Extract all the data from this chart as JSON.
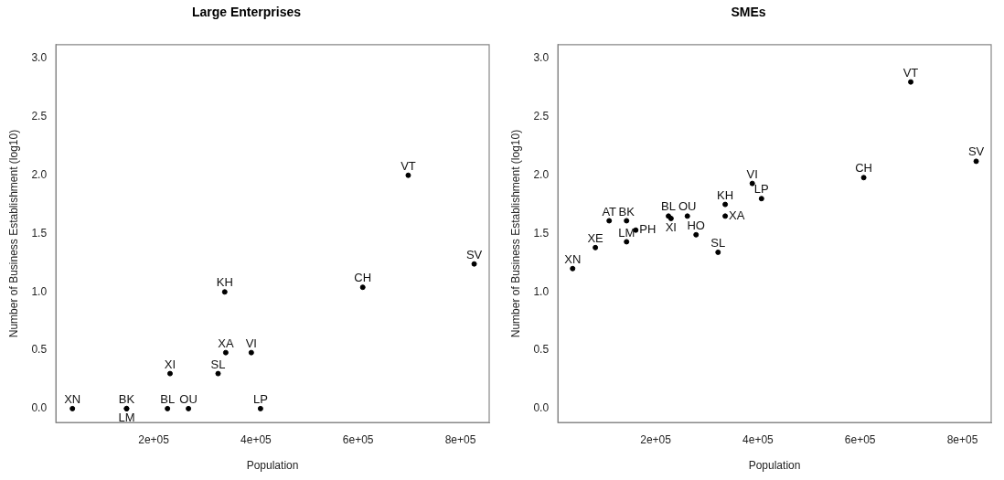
{
  "chart_data": [
    {
      "type": "scatter",
      "title": "Large Enterprises",
      "xlabel": "Population",
      "ylabel": "Number of Business Establishment (log10)",
      "marker": "circle",
      "grid": false,
      "legend": false,
      "x": [
        41000,
        147000,
        147000,
        227000,
        268000,
        232000,
        326000,
        341000,
        391000,
        409000,
        339000,
        609000,
        698000,
        827000
      ],
      "series": [
        {
          "color": "#000000",
          "values": [
            0,
            0,
            0,
            0,
            0,
            0.3,
            0.3,
            0.48,
            0.48,
            0,
            1.0,
            1.04,
            2.0,
            1.24
          ]
        }
      ],
      "xlim": [
        8600,
        856400
      ],
      "xticks": [
        {
          "value": 200000,
          "label": "2e+05"
        },
        {
          "value": 400000,
          "label": "4e+05"
        },
        {
          "value": 600000,
          "label": "6e+05"
        },
        {
          "value": 800000,
          "label": "8e+05"
        }
      ],
      "ylim": [
        -0.12,
        3.12
      ],
      "yticks": [
        {
          "value": 0,
          "label": "0.0"
        },
        {
          "value": 0.5,
          "label": "0.5"
        },
        {
          "value": 1,
          "label": "1.0"
        },
        {
          "value": 1.5,
          "label": "1.5"
        },
        {
          "value": 2,
          "label": "2.0"
        },
        {
          "value": 2.5,
          "label": "2.5"
        },
        {
          "value": 3,
          "label": "3.0"
        }
      ],
      "annotations": [
        {
          "text": "XN",
          "x": 41000,
          "y": 0
        },
        {
          "text": "BK",
          "x": 147000,
          "y": 0
        },
        {
          "text": "LM",
          "x": 147000,
          "y": 0
        },
        {
          "text": "BL",
          "x": 227000,
          "y": 0
        },
        {
          "text": "OU",
          "x": 268000,
          "y": 0
        },
        {
          "text": "XI",
          "x": 232000,
          "y": 0.3
        },
        {
          "text": "SL",
          "x": 326000,
          "y": 0.3
        },
        {
          "text": "XA",
          "x": 341000,
          "y": 0.48
        },
        {
          "text": "VI",
          "x": 391000,
          "y": 0.48
        },
        {
          "text": "LP",
          "x": 409000,
          "y": 0
        },
        {
          "text": "KH",
          "x": 339000,
          "y": 1.0
        },
        {
          "text": "CH",
          "x": 609000,
          "y": 1.04
        },
        {
          "text": "VT",
          "x": 698000,
          "y": 2.0
        },
        {
          "text": "SV",
          "x": 827000,
          "y": 1.24
        }
      ]
    },
    {
      "type": "scatter",
      "title": "SMEs",
      "xlabel": "Population",
      "ylabel": "Number of Business Establishment (log10)",
      "marker": "circle",
      "grid": false,
      "legend": false,
      "x": [
        37500,
        82000,
        109000,
        143000,
        161000,
        143000,
        225000,
        230000,
        262000,
        279000,
        322000,
        336000,
        336000,
        389000,
        407000,
        607000,
        699000,
        827000
      ],
      "series": [
        {
          "color": "#000000",
          "values": [
            1.2,
            1.38,
            1.61,
            1.61,
            1.53,
            1.43,
            1.65,
            1.63,
            1.65,
            1.49,
            1.34,
            1.75,
            1.65,
            1.93,
            1.8,
            1.98,
            2.8,
            2.12
          ]
        }
      ],
      "xlim": [
        8600,
        856400
      ],
      "xticks": [
        {
          "value": 200000,
          "label": "2e+05"
        },
        {
          "value": 400000,
          "label": "4e+05"
        },
        {
          "value": 600000,
          "label": "6e+05"
        },
        {
          "value": 800000,
          "label": "8e+05"
        }
      ],
      "ylim": [
        -0.12,
        3.12
      ],
      "yticks": [
        {
          "value": 0,
          "label": "0.0"
        },
        {
          "value": 0.5,
          "label": "0.5"
        },
        {
          "value": 1,
          "label": "1.0"
        },
        {
          "value": 1.5,
          "label": "1.5"
        },
        {
          "value": 2,
          "label": "2.0"
        },
        {
          "value": 2.5,
          "label": "2.5"
        },
        {
          "value": 3,
          "label": "3.0"
        }
      ],
      "annotations": [
        {
          "text": "XN",
          "x": 37500,
          "y": 1.2
        },
        {
          "text": "XE",
          "x": 82000,
          "y": 1.38
        },
        {
          "text": "AT",
          "x": 109000,
          "y": 1.61
        },
        {
          "text": "BK",
          "x": 143000,
          "y": 1.61
        },
        {
          "text": "PH",
          "x": 161000,
          "y": 1.53
        },
        {
          "text": "LM",
          "x": 143000,
          "y": 1.43
        },
        {
          "text": "BL",
          "x": 225000,
          "y": 1.65
        },
        {
          "text": "XI",
          "x": 230000,
          "y": 1.63
        },
        {
          "text": "OU",
          "x": 262000,
          "y": 1.65
        },
        {
          "text": "HO",
          "x": 279000,
          "y": 1.49
        },
        {
          "text": "SL",
          "x": 322000,
          "y": 1.34
        },
        {
          "text": "KH",
          "x": 336000,
          "y": 1.75
        },
        {
          "text": "XA",
          "x": 336000,
          "y": 1.65
        },
        {
          "text": "VI",
          "x": 389000,
          "y": 1.93
        },
        {
          "text": "LP",
          "x": 407000,
          "y": 1.8
        },
        {
          "text": "CH",
          "x": 607000,
          "y": 1.98
        },
        {
          "text": "VT",
          "x": 699000,
          "y": 2.8
        },
        {
          "text": "SV",
          "x": 827000,
          "y": 2.12
        }
      ]
    }
  ]
}
